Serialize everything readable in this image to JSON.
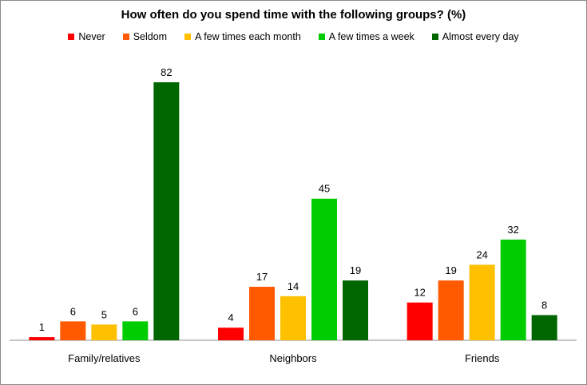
{
  "chart_data": {
    "type": "bar",
    "title": "How often do you spend time with the following groups? (%)",
    "categories": [
      "Family/relatives",
      "Neighbors",
      "Friends"
    ],
    "series": [
      {
        "name": "Never",
        "color": "#ff0000",
        "values": [
          1,
          4,
          12
        ]
      },
      {
        "name": "Seldom",
        "color": "#ff5a00",
        "values": [
          6,
          17,
          19
        ]
      },
      {
        "name": "A few times each month",
        "color": "#ffc000",
        "values": [
          5,
          14,
          24
        ]
      },
      {
        "name": "A few times a week",
        "color": "#00cc00",
        "values": [
          6,
          45,
          32
        ]
      },
      {
        "name": "Almost every day",
        "color": "#006600",
        "values": [
          82,
          19,
          8
        ]
      }
    ],
    "ylim": [
      0,
      82
    ],
    "legend_position": "top",
    "grid": false
  }
}
